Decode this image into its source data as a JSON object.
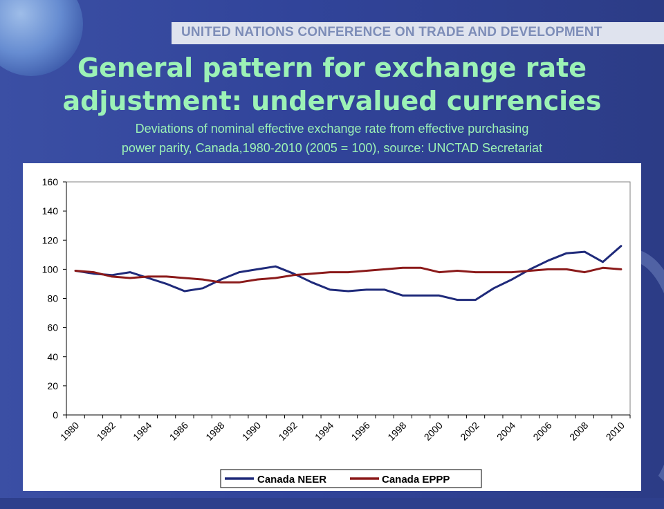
{
  "header": {
    "banner_text": "UNITED NATIONS CONFERENCE ON TRADE AND DEVELOPMENT"
  },
  "slide": {
    "title_line1": "General pattern for exchange rate",
    "title_line2": "adjustment: undervalued currencies",
    "subtitle_line1": "Deviations of nominal effective exchange rate from effective purchasing",
    "subtitle_line2": "power parity, Canada,1980-2010  (2005 = 100), source: UNCTAD Secretariat"
  },
  "colors": {
    "title": "#9cf2b6",
    "neer": "#1f2a7a",
    "eppp": "#8b1a1a"
  },
  "chart_data": {
    "type": "line",
    "x": [
      1980,
      1981,
      1982,
      1983,
      1984,
      1985,
      1986,
      1987,
      1988,
      1989,
      1990,
      1991,
      1992,
      1993,
      1994,
      1995,
      1996,
      1997,
      1998,
      1999,
      2000,
      2001,
      2002,
      2003,
      2004,
      2005,
      2006,
      2007,
      2008,
      2009,
      2010
    ],
    "x_tick_labels": [
      "1980",
      "1982",
      "1984",
      "1986",
      "1988",
      "1990",
      "1992",
      "1994",
      "1996",
      "1998",
      "2000",
      "2002",
      "2004",
      "2006",
      "2008",
      "2010"
    ],
    "y_tick_labels": [
      "0",
      "20",
      "40",
      "60",
      "80",
      "100",
      "120",
      "140",
      "160"
    ],
    "ylim": [
      0,
      160
    ],
    "series": [
      {
        "name": "Canada NEER",
        "values": [
          99,
          97,
          96,
          98,
          94,
          90,
          85,
          87,
          93,
          98,
          100,
          102,
          97,
          91,
          86,
          85,
          86,
          86,
          82,
          82,
          82,
          79,
          79,
          87,
          93,
          100,
          106,
          111,
          112,
          105,
          116
        ]
      },
      {
        "name": "Canada EPPP",
        "values": [
          99,
          98,
          95,
          94,
          95,
          95,
          94,
          93,
          91,
          91,
          93,
          94,
          96,
          97,
          98,
          98,
          99,
          100,
          101,
          101,
          98,
          99,
          98,
          98,
          98,
          99,
          100,
          100,
          98,
          101,
          100
        ]
      }
    ],
    "legend_position": "bottom"
  }
}
